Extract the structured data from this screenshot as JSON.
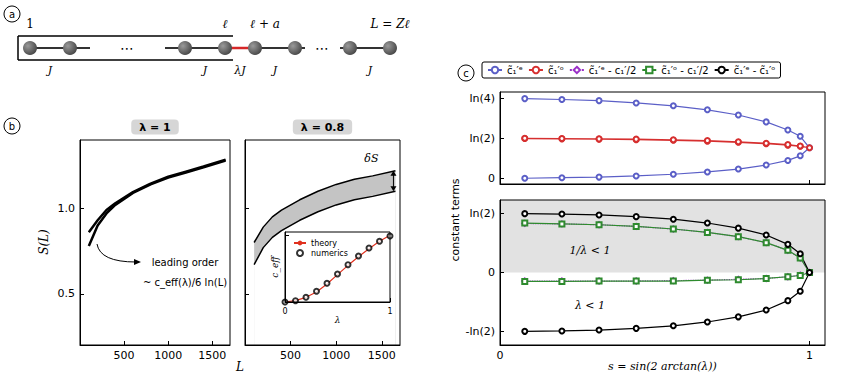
{
  "panel_labels": [
    "a",
    "b",
    "c"
  ],
  "diagram": {
    "site_labels": [
      "1",
      "ℓ",
      "ℓ + a",
      "L = Zℓ"
    ],
    "bond_labels": [
      "J",
      "J",
      "J",
      "J"
    ],
    "weak_bond_label": "λJ",
    "ellipsis": "⋯"
  },
  "chart_data": [
    {
      "type": "line",
      "title": "λ = 1",
      "x_label": "L",
      "y_label": "S(L)",
      "xlim": [
        0,
        1700
      ],
      "xticks": [
        500,
        1000,
        1500
      ],
      "ylim": [
        0.2,
        1.4
      ],
      "yticks": [
        0.5,
        {
          "value": 1,
          "label": "1.0"
        }
      ],
      "annotations": [
        "leading order",
        "~ c_eff(λ)/6 ln(L)"
      ],
      "series": [
        {
          "color": "#000000",
          "x": [
            100,
            200,
            300,
            400,
            600,
            800,
            1000,
            1200,
            1400,
            1650
          ],
          "values": [
            0.86,
            0.93,
            0.99,
            1.03,
            1.095,
            1.145,
            1.185,
            1.215,
            1.245,
            1.285
          ]
        },
        {
          "color": "#000000",
          "x": [
            100,
            200,
            300,
            400,
            600,
            800,
            1000,
            1200,
            1400,
            1650
          ],
          "values": [
            0.78,
            0.9,
            0.97,
            1.02,
            1.09,
            1.14,
            1.18,
            1.21,
            1.24,
            1.28
          ]
        }
      ]
    },
    {
      "type": "band",
      "title": "λ = 0.8",
      "tick_labels": "x",
      "xlim": [
        0,
        1700
      ],
      "xticks": [
        500,
        1000,
        1500
      ],
      "ylim": [
        0.2,
        1.4
      ],
      "yticks": [
        0.5,
        {
          "value": 1,
          "label": "1.0"
        }
      ],
      "annotations": [
        "δS"
      ],
      "series": [
        {
          "color": "#000000",
          "x": [
            100,
            200,
            300,
            400,
            600,
            800,
            1000,
            1200,
            1400,
            1650
          ],
          "values": [
            0.8,
            0.89,
            0.95,
            0.99,
            1.05,
            1.1,
            1.14,
            1.17,
            1.19,
            1.22
          ]
        },
        {
          "color": "#000000",
          "x": [
            100,
            200,
            300,
            400,
            600,
            800,
            1000,
            1200,
            1400,
            1650
          ],
          "values": [
            0.67,
            0.77,
            0.83,
            0.87,
            0.93,
            0.98,
            1.02,
            1.05,
            1.07,
            1.1
          ]
        }
      ]
    },
    {
      "type": "line",
      "x_label": "λ",
      "y_label": "c_eff",
      "tick_labels": "x",
      "legend": "upper left",
      "xlim": [
        0,
        1
      ],
      "xticks": [
        0,
        1
      ],
      "ylim": [
        0,
        1.05
      ],
      "yticks": [
        0,
        1
      ],
      "series": [
        {
          "name": "theory",
          "color": "#e0301e",
          "type": "line",
          "x": [
            0,
            0.1,
            0.2,
            0.3,
            0.4,
            0.5,
            0.6,
            0.7,
            0.8,
            0.9,
            1
          ],
          "values": [
            0,
            0.02,
            0.07,
            0.15,
            0.27,
            0.41,
            0.55,
            0.68,
            0.8,
            0.91,
            1.0
          ]
        },
        {
          "name": "numerics",
          "color": "#000000",
          "type": "scatter",
          "marker": "circle",
          "x": [
            0,
            0.1,
            0.2,
            0.3,
            0.4,
            0.5,
            0.6,
            0.7,
            0.8,
            0.9,
            1
          ],
          "values": [
            0,
            0.02,
            0.07,
            0.16,
            0.28,
            0.42,
            0.56,
            0.69,
            0.81,
            0.91,
            0.99
          ]
        }
      ]
    },
    {
      "type": "line",
      "y_label": "constant terms",
      "tick_labels": "y",
      "legend": "top",
      "xlim": [
        0,
        1.05
      ],
      "xticks": [
        0,
        1
      ],
      "ylim": [
        -0.1,
        1.5
      ],
      "yticks": [
        0,
        {
          "value": 0.6931,
          "label": "ln(2)"
        },
        {
          "value": 1.3863,
          "label": "ln(4)"
        }
      ],
      "series": [
        {
          "name": "c̃₁′ᵉ",
          "color": "#5b5fc7",
          "marker": "circle",
          "x": [
            0.08,
            0.2,
            0.32,
            0.44,
            0.56,
            0.67,
            0.77,
            0.86,
            0.93,
            0.97,
            1,
            0.97,
            0.93,
            0.86,
            0.77,
            0.67,
            0.56,
            0.44,
            0.32,
            0.2,
            0.08
          ],
          "values": [
            0.0,
            0.01,
            0.02,
            0.04,
            0.07,
            0.11,
            0.16,
            0.23,
            0.31,
            0.39,
            0.53,
            0.73,
            0.84,
            0.98,
            1.1,
            1.19,
            1.26,
            1.31,
            1.35,
            1.37,
            1.385
          ]
        },
        {
          "name": "c̃₁′ᵒ",
          "color": "#d62f2f",
          "marker": "circle",
          "x": [
            0.08,
            0.2,
            0.32,
            0.44,
            0.56,
            0.67,
            0.77,
            0.86,
            0.93,
            0.97,
            1,
            0.97,
            0.93,
            0.86,
            0.77,
            0.67,
            0.56,
            0.44,
            0.32,
            0.2,
            0.08
          ],
          "values": [
            0.69,
            0.685,
            0.68,
            0.67,
            0.66,
            0.645,
            0.625,
            0.6,
            0.575,
            0.555,
            0.53,
            0.56,
            0.585,
            0.61,
            0.635,
            0.655,
            0.67,
            0.68,
            0.685,
            0.69,
            0.695
          ]
        }
      ]
    },
    {
      "type": "line",
      "x_label": "s = sin(2 arctan(λ))",
      "legend": "top",
      "xlim": [
        0,
        1.05
      ],
      "xticks": [
        0,
        1
      ],
      "ylim": [
        -0.85,
        0.85
      ],
      "yticks": [
        {
          "value": -0.6931,
          "label": "-ln(2)"
        },
        0,
        {
          "value": 0.6931,
          "label": "ln(2)"
        }
      ],
      "shaded_region": {
        "from": 0,
        "to": 0.85
      },
      "annotations": [
        "1/λ < 1",
        "λ < 1"
      ],
      "series": [
        {
          "name": "c̃₁′ᵉ - c₁′/2",
          "color": "#9b30c8",
          "marker": "diamond",
          "line_style": "dotted",
          "x": [
            0.08,
            0.2,
            0.32,
            0.44,
            0.56,
            0.67,
            0.77,
            0.86,
            0.93,
            0.97,
            1,
            0.97,
            0.93,
            0.86,
            0.77,
            0.67,
            0.56,
            0.44,
            0.32,
            0.2,
            0.08
          ],
          "values": [
            -0.1,
            -0.1,
            -0.1,
            -0.1,
            -0.095,
            -0.09,
            -0.08,
            -0.07,
            -0.05,
            -0.03,
            0,
            0.17,
            0.26,
            0.35,
            0.42,
            0.47,
            0.51,
            0.54,
            0.56,
            0.57,
            0.575
          ]
        },
        {
          "name": "c̃₁′ᵒ - c₁′/2",
          "color": "#2e8b2e",
          "marker": "square",
          "x": [
            0.08,
            0.2,
            0.32,
            0.44,
            0.56,
            0.67,
            0.77,
            0.86,
            0.93,
            0.97,
            1,
            0.97,
            0.93,
            0.86,
            0.77,
            0.67,
            0.56,
            0.44,
            0.32,
            0.2,
            0.08
          ],
          "values": [
            -0.105,
            -0.105,
            -0.1,
            -0.1,
            -0.1,
            -0.09,
            -0.085,
            -0.07,
            -0.05,
            -0.035,
            0,
            0.17,
            0.26,
            0.35,
            0.42,
            0.47,
            0.51,
            0.54,
            0.56,
            0.57,
            0.58
          ]
        },
        {
          "name": "c̃₁′ᵉ - c̃₁′ᵒ",
          "color": "#000000",
          "marker": "circle",
          "x": [
            0.08,
            0.2,
            0.32,
            0.44,
            0.56,
            0.67,
            0.77,
            0.86,
            0.93,
            0.97,
            1,
            0.97,
            0.93,
            0.86,
            0.77,
            0.67,
            0.56,
            0.44,
            0.32,
            0.2,
            0.08
          ],
          "values": [
            -0.69,
            -0.685,
            -0.675,
            -0.655,
            -0.625,
            -0.58,
            -0.52,
            -0.44,
            -0.33,
            -0.22,
            0,
            0.22,
            0.33,
            0.44,
            0.52,
            0.58,
            0.625,
            0.655,
            0.675,
            0.685,
            0.69
          ]
        }
      ]
    }
  ]
}
